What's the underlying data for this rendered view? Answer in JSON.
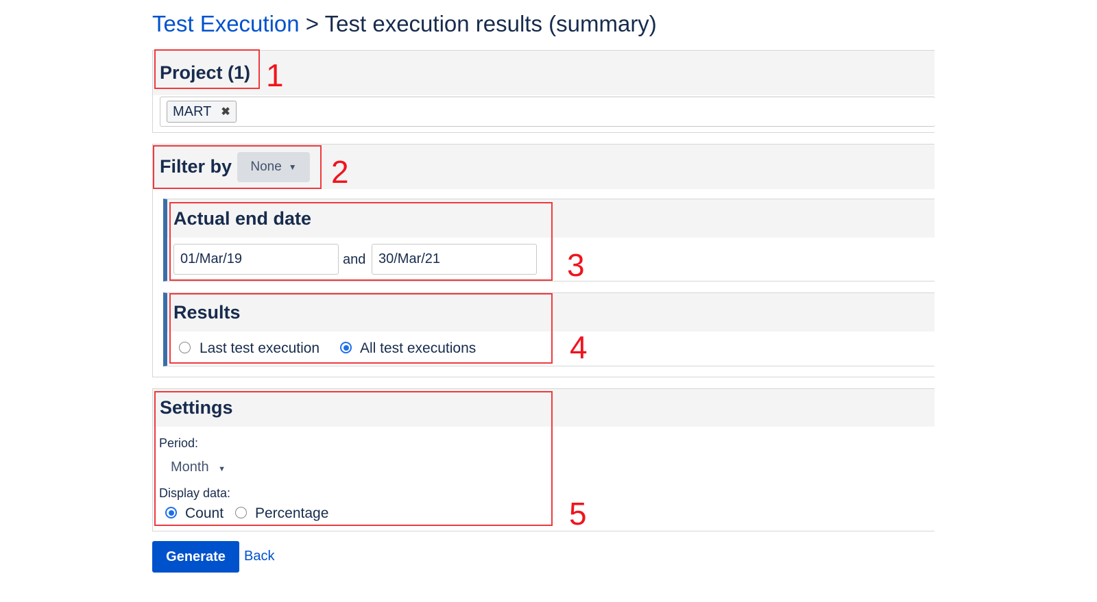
{
  "breadcrumb": {
    "parent": "Test Execution",
    "separator": ">",
    "current": "Test execution results (summary)"
  },
  "project": {
    "heading": "Project (1)",
    "tags": [
      {
        "label": "MART",
        "remove_icon": "close-icon"
      }
    ]
  },
  "filter": {
    "heading": "Filter by",
    "select_value": "None",
    "date": {
      "heading": "Actual end date",
      "from": "01/Mar/19",
      "and_label": "and",
      "to": "30/Mar/21"
    },
    "results": {
      "heading": "Results",
      "options": [
        {
          "label": "Last test execution",
          "checked": false
        },
        {
          "label": "All test executions",
          "checked": true
        }
      ]
    }
  },
  "settings": {
    "heading": "Settings",
    "period_label": "Period:",
    "period_value": "Month",
    "display_label": "Display data:",
    "display_options": [
      {
        "label": "Count",
        "checked": true
      },
      {
        "label": "Percentage",
        "checked": false
      }
    ]
  },
  "actions": {
    "generate": "Generate",
    "back": "Back"
  },
  "annotations": [
    "1",
    "2",
    "3",
    "4",
    "5"
  ],
  "colors": {
    "link": "#0052cc",
    "primary_button": "#0052cc",
    "annotation": "#f0141e",
    "sidebar_accent": "#3b6ea8"
  }
}
